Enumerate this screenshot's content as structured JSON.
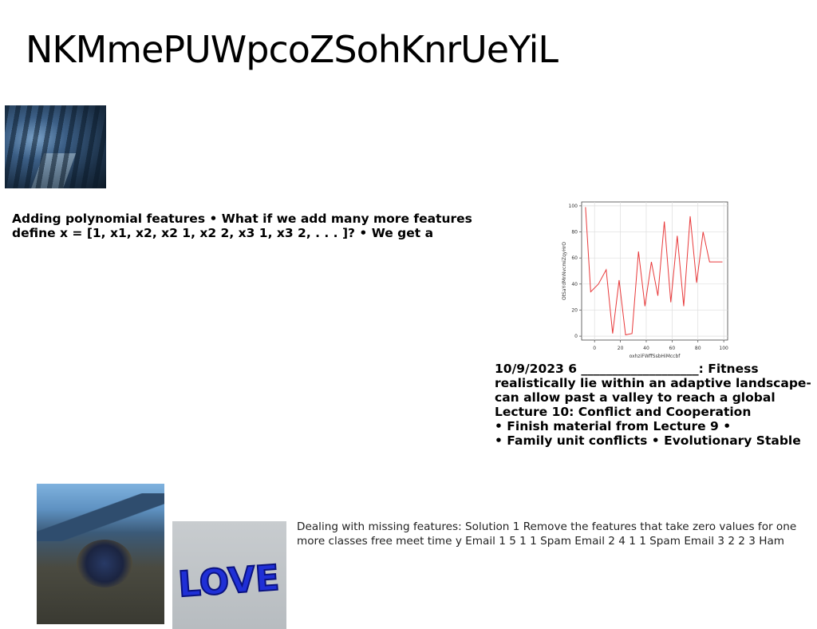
{
  "title": "NKMmePUWpcoZSohKnrUeYiL",
  "images": {
    "forest": "forest-path-photo",
    "mountain": "mountain-crater-photo",
    "love": "blue-love-balloon-photo",
    "love_text": "LOVE"
  },
  "text_block_1": {
    "line1": "Adding polynomial features • What if we add many more features",
    "line2": "define x = [1, x1, x2, x2 1, x2 2, x3 1, x3 2, . . . ]? • We get a"
  },
  "text_block_2": {
    "line1": "10/9/2023 6 ___________________: Fitness",
    "line2": "realistically lie within an adaptive landscape-",
    "line3": "can allow past a valley to reach a global",
    "line4": "Lecture 10: Conflict and Cooperation",
    "line5": "• Finish material from Lecture 9 •",
    "line6": "• Family unit conflicts • Evolutionary Stable"
  },
  "text_block_3": {
    "line1": "Dealing with missing features: Solution 1 Remove the features that take zero values for one",
    "line2": "more classes free meet time y Email 1 5 1 1 Spam Email 2 4 1 1 Spam Email 3 2 2 3 Ham"
  },
  "chart_data": {
    "type": "line",
    "xlabel": "oxhzjFWffSsbHjMccbf",
    "ylabel": "OtSaYdMnNvcmiZqyHrO",
    "xlim": [
      -10,
      103
    ],
    "ylim": [
      -3,
      103
    ],
    "x_ticks": [
      0,
      20,
      40,
      60,
      80,
      100
    ],
    "y_ticks": [
      0,
      20,
      40,
      60,
      80,
      100
    ],
    "grid": true,
    "series": [
      {
        "color": "#e8393a",
        "x": [
          -7,
          -3,
          3,
          9,
          14,
          19,
          24,
          29,
          34,
          39,
          44,
          49,
          54,
          59,
          64,
          69,
          74,
          79,
          84,
          89,
          94,
          99
        ],
        "y": [
          99,
          34,
          40,
          51,
          2,
          43,
          1,
          2,
          65,
          23,
          57,
          31,
          88,
          26,
          77,
          23,
          92,
          41,
          80,
          57,
          57,
          57
        ]
      }
    ]
  }
}
